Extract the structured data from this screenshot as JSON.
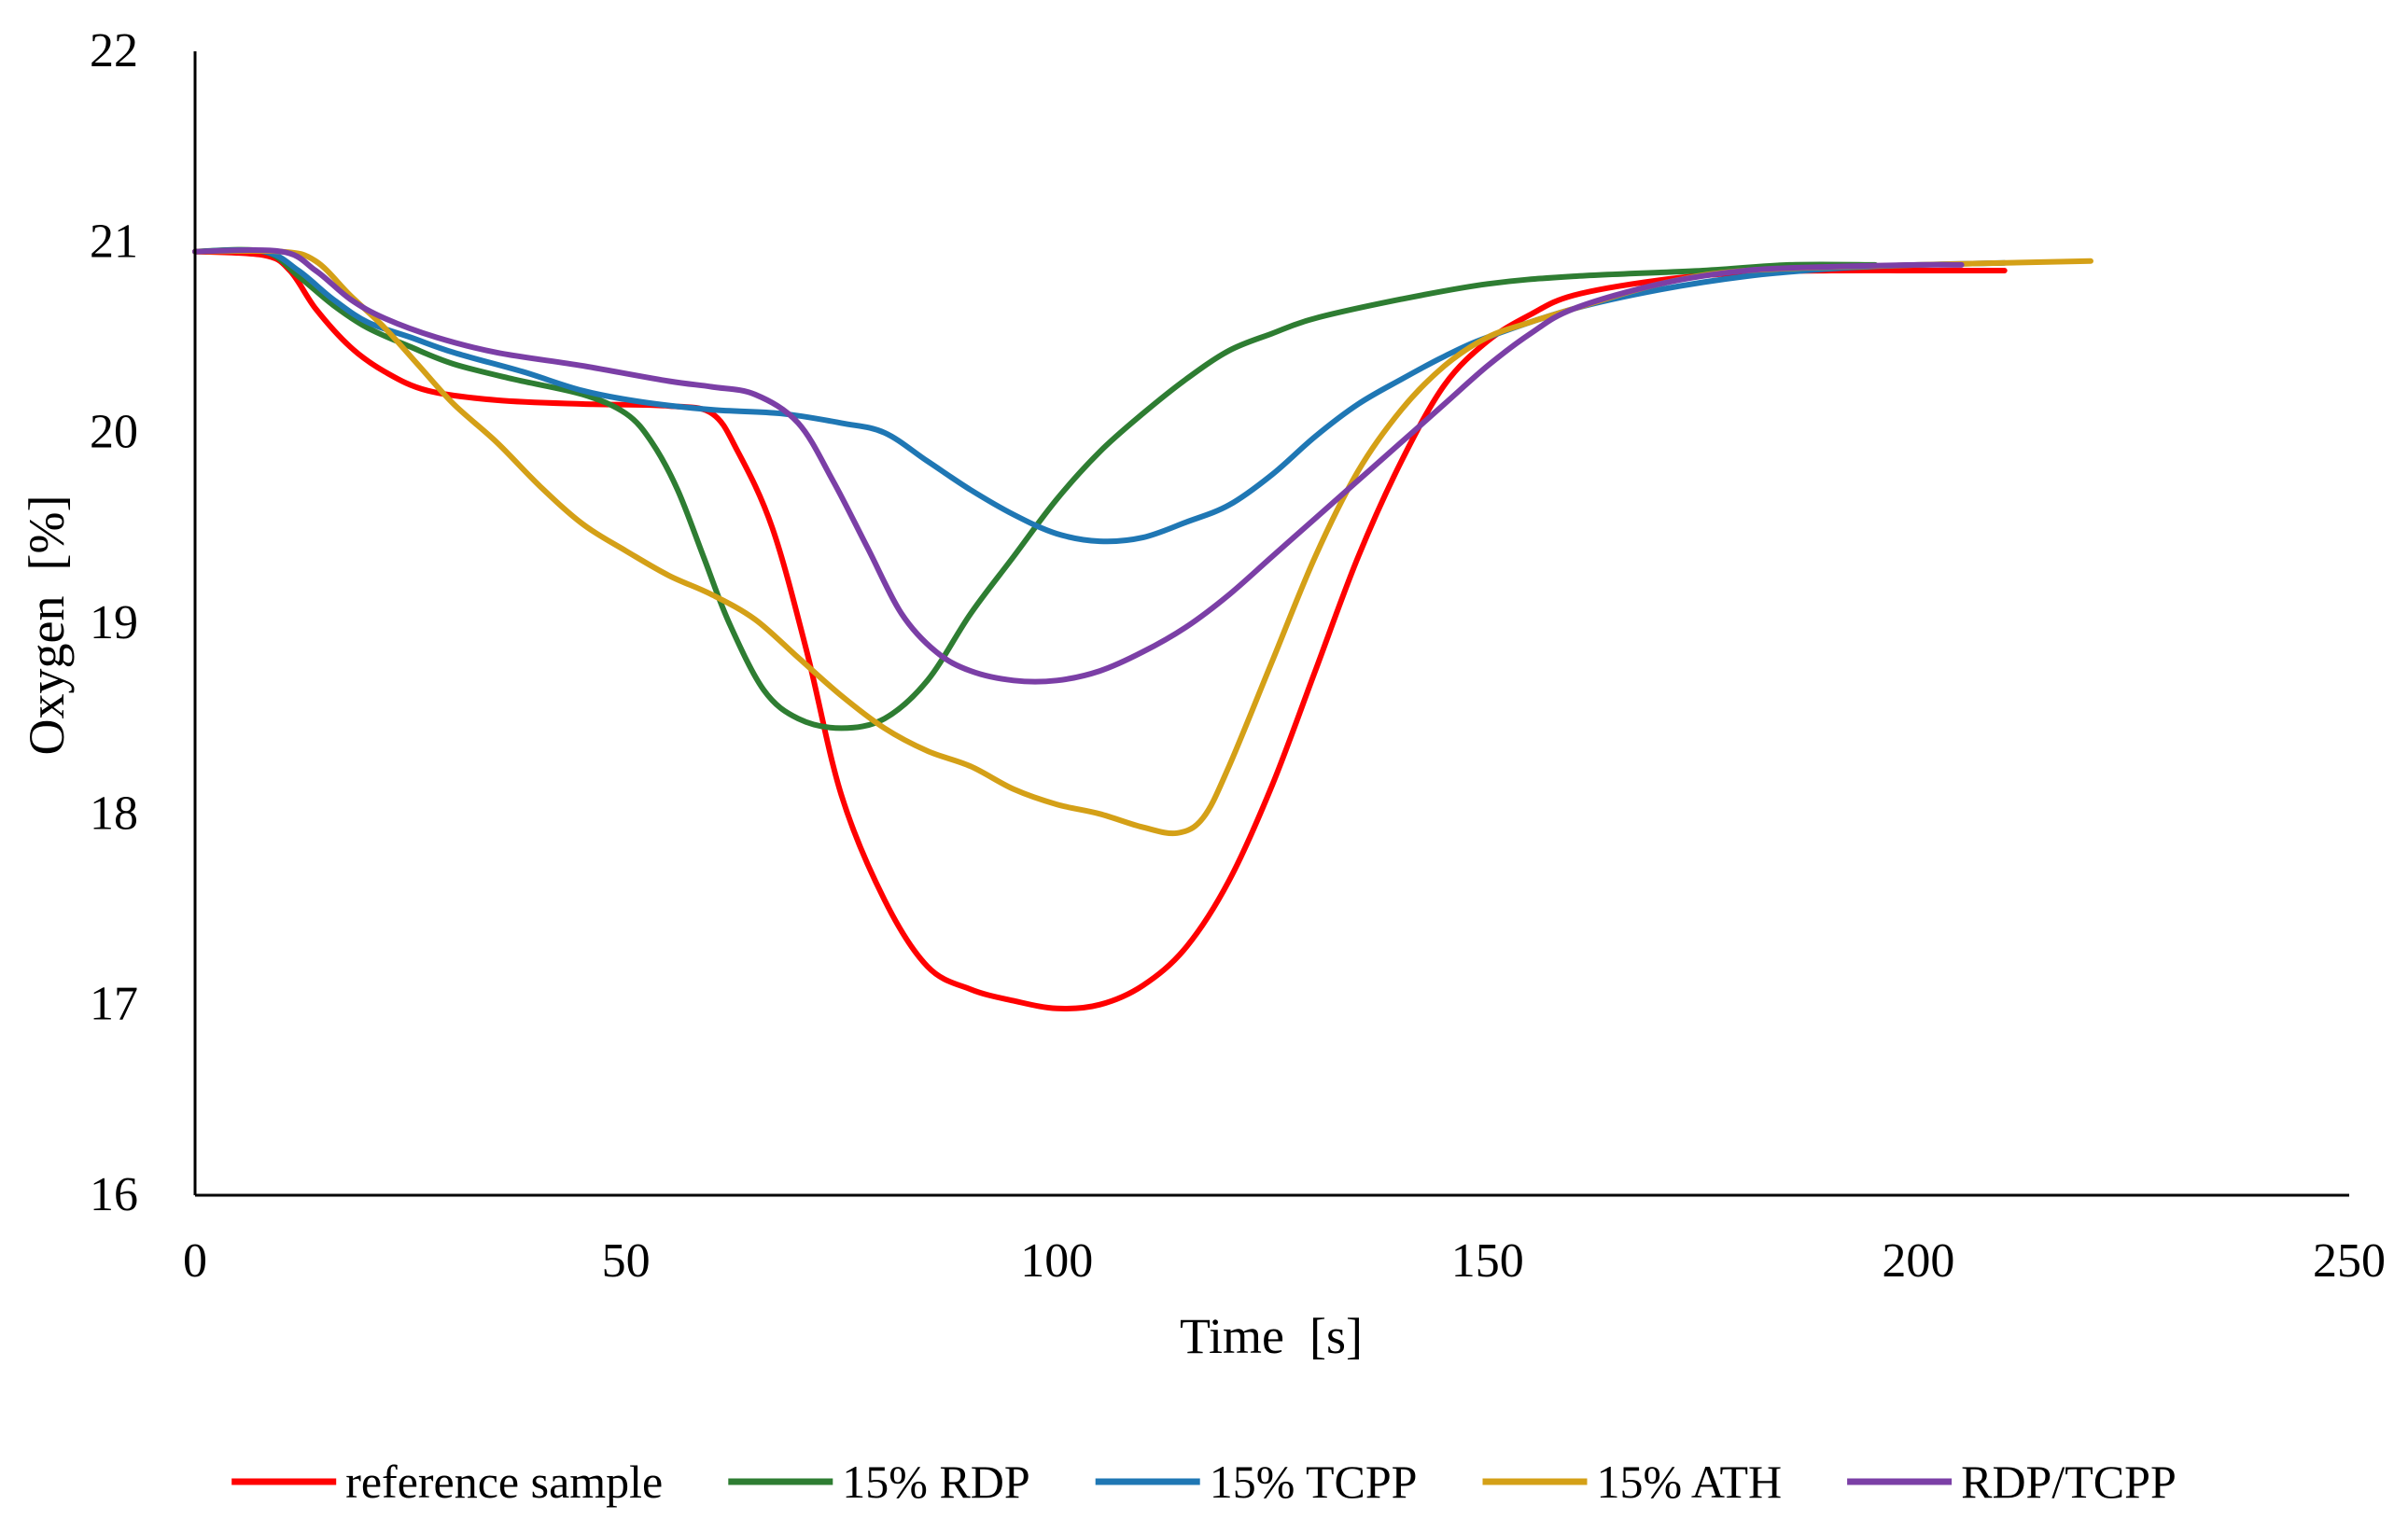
{
  "chart_data": {
    "type": "line",
    "title": "",
    "xlabel": "Time  [s]",
    "ylabel": "Oxygen  [%]",
    "xlim": [
      0,
      250
    ],
    "ylim": [
      16,
      22
    ],
    "xticks": [
      0,
      50,
      100,
      150,
      200,
      250
    ],
    "yticks": [
      16,
      17,
      18,
      19,
      20,
      21,
      22
    ],
    "grid": false,
    "legend_position": "bottom",
    "series": [
      {
        "name": "reference sample",
        "color": "#ff0000",
        "points": [
          [
            0,
            20.95
          ],
          [
            8,
            20.93
          ],
          [
            11,
            20.85
          ],
          [
            14,
            20.65
          ],
          [
            18,
            20.45
          ],
          [
            22,
            20.32
          ],
          [
            27,
            20.22
          ],
          [
            35,
            20.17
          ],
          [
            45,
            20.15
          ],
          [
            55,
            20.14
          ],
          [
            60,
            20.1
          ],
          [
            63,
            19.9
          ],
          [
            67,
            19.5
          ],
          [
            71,
            18.85
          ],
          [
            75,
            18.1
          ],
          [
            80,
            17.55
          ],
          [
            85,
            17.2
          ],
          [
            90,
            17.08
          ],
          [
            95,
            17.02
          ],
          [
            100,
            16.98
          ],
          [
            105,
            17.0
          ],
          [
            110,
            17.1
          ],
          [
            115,
            17.3
          ],
          [
            120,
            17.65
          ],
          [
            125,
            18.15
          ],
          [
            130,
            18.75
          ],
          [
            135,
            19.35
          ],
          [
            140,
            19.85
          ],
          [
            145,
            20.25
          ],
          [
            150,
            20.48
          ],
          [
            155,
            20.62
          ],
          [
            160,
            20.72
          ],
          [
            170,
            20.8
          ],
          [
            180,
            20.84
          ],
          [
            190,
            20.85
          ],
          [
            200,
            20.85
          ],
          [
            210,
            20.85
          ]
        ]
      },
      {
        "name": "15% RDP",
        "color": "#2e7d32",
        "points": [
          [
            0,
            20.95
          ],
          [
            8,
            20.95
          ],
          [
            12,
            20.82
          ],
          [
            16,
            20.67
          ],
          [
            20,
            20.55
          ],
          [
            25,
            20.45
          ],
          [
            30,
            20.36
          ],
          [
            37,
            20.28
          ],
          [
            45,
            20.2
          ],
          [
            50,
            20.1
          ],
          [
            53,
            19.95
          ],
          [
            56,
            19.7
          ],
          [
            59,
            19.35
          ],
          [
            62,
            19.0
          ],
          [
            66,
            18.65
          ],
          [
            70,
            18.5
          ],
          [
            75,
            18.45
          ],
          [
            80,
            18.5
          ],
          [
            85,
            18.7
          ],
          [
            90,
            19.05
          ],
          [
            95,
            19.35
          ],
          [
            100,
            19.65
          ],
          [
            105,
            19.9
          ],
          [
            110,
            20.1
          ],
          [
            115,
            20.28
          ],
          [
            120,
            20.43
          ],
          [
            125,
            20.52
          ],
          [
            130,
            20.6
          ],
          [
            140,
            20.7
          ],
          [
            150,
            20.78
          ],
          [
            160,
            20.82
          ],
          [
            175,
            20.85
          ],
          [
            185,
            20.88
          ],
          [
            195,
            20.88
          ]
        ]
      },
      {
        "name": "15% TCPP",
        "color": "#1f77b4",
        "points": [
          [
            0,
            20.95
          ],
          [
            8,
            20.95
          ],
          [
            12,
            20.85
          ],
          [
            16,
            20.7
          ],
          [
            20,
            20.58
          ],
          [
            25,
            20.5
          ],
          [
            30,
            20.42
          ],
          [
            38,
            20.32
          ],
          [
            45,
            20.22
          ],
          [
            52,
            20.16
          ],
          [
            60,
            20.12
          ],
          [
            68,
            20.1
          ],
          [
            75,
            20.05
          ],
          [
            80,
            20.0
          ],
          [
            85,
            19.85
          ],
          [
            90,
            19.7
          ],
          [
            95,
            19.57
          ],
          [
            100,
            19.47
          ],
          [
            105,
            19.43
          ],
          [
            110,
            19.45
          ],
          [
            115,
            19.53
          ],
          [
            120,
            19.62
          ],
          [
            125,
            19.78
          ],
          [
            130,
            19.98
          ],
          [
            135,
            20.15
          ],
          [
            140,
            20.28
          ],
          [
            145,
            20.4
          ],
          [
            150,
            20.5
          ],
          [
            160,
            20.65
          ],
          [
            170,
            20.75
          ],
          [
            180,
            20.82
          ],
          [
            190,
            20.86
          ],
          [
            200,
            20.88
          ],
          [
            210,
            20.89
          ]
        ]
      },
      {
        "name": "15% ATH",
        "color": "#d4a017",
        "points": [
          [
            0,
            20.95
          ],
          [
            10,
            20.95
          ],
          [
            14,
            20.9
          ],
          [
            18,
            20.72
          ],
          [
            22,
            20.55
          ],
          [
            26,
            20.35
          ],
          [
            30,
            20.15
          ],
          [
            35,
            19.95
          ],
          [
            40,
            19.72
          ],
          [
            45,
            19.52
          ],
          [
            50,
            19.38
          ],
          [
            55,
            19.25
          ],
          [
            60,
            19.15
          ],
          [
            65,
            19.02
          ],
          [
            70,
            18.82
          ],
          [
            75,
            18.62
          ],
          [
            80,
            18.45
          ],
          [
            85,
            18.33
          ],
          [
            90,
            18.25
          ],
          [
            95,
            18.13
          ],
          [
            100,
            18.05
          ],
          [
            105,
            18.0
          ],
          [
            110,
            17.93
          ],
          [
            114,
            17.9
          ],
          [
            117,
            17.98
          ],
          [
            120,
            18.25
          ],
          [
            125,
            18.8
          ],
          [
            130,
            19.35
          ],
          [
            135,
            19.8
          ],
          [
            140,
            20.12
          ],
          [
            145,
            20.35
          ],
          [
            150,
            20.5
          ],
          [
            155,
            20.58
          ],
          [
            160,
            20.65
          ],
          [
            170,
            20.78
          ],
          [
            180,
            20.85
          ],
          [
            200,
            20.88
          ],
          [
            220,
            20.9
          ]
        ]
      },
      {
        "name": "RDP/TCPP",
        "color": "#7b3fa6",
        "points": [
          [
            0,
            20.95
          ],
          [
            10,
            20.95
          ],
          [
            14,
            20.85
          ],
          [
            18,
            20.7
          ],
          [
            22,
            20.6
          ],
          [
            28,
            20.5
          ],
          [
            35,
            20.42
          ],
          [
            45,
            20.35
          ],
          [
            55,
            20.27
          ],
          [
            60,
            20.24
          ],
          [
            65,
            20.2
          ],
          [
            70,
            20.05
          ],
          [
            74,
            19.75
          ],
          [
            78,
            19.4
          ],
          [
            82,
            19.05
          ],
          [
            86,
            18.85
          ],
          [
            90,
            18.75
          ],
          [
            95,
            18.7
          ],
          [
            100,
            18.7
          ],
          [
            105,
            18.75
          ],
          [
            110,
            18.85
          ],
          [
            115,
            18.98
          ],
          [
            120,
            19.15
          ],
          [
            125,
            19.35
          ],
          [
            130,
            19.55
          ],
          [
            135,
            19.75
          ],
          [
            140,
            19.95
          ],
          [
            145,
            20.15
          ],
          [
            150,
            20.35
          ],
          [
            155,
            20.52
          ],
          [
            160,
            20.65
          ],
          [
            170,
            20.78
          ],
          [
            180,
            20.85
          ],
          [
            190,
            20.87
          ],
          [
            200,
            20.88
          ],
          [
            205,
            20.88
          ]
        ]
      }
    ]
  }
}
